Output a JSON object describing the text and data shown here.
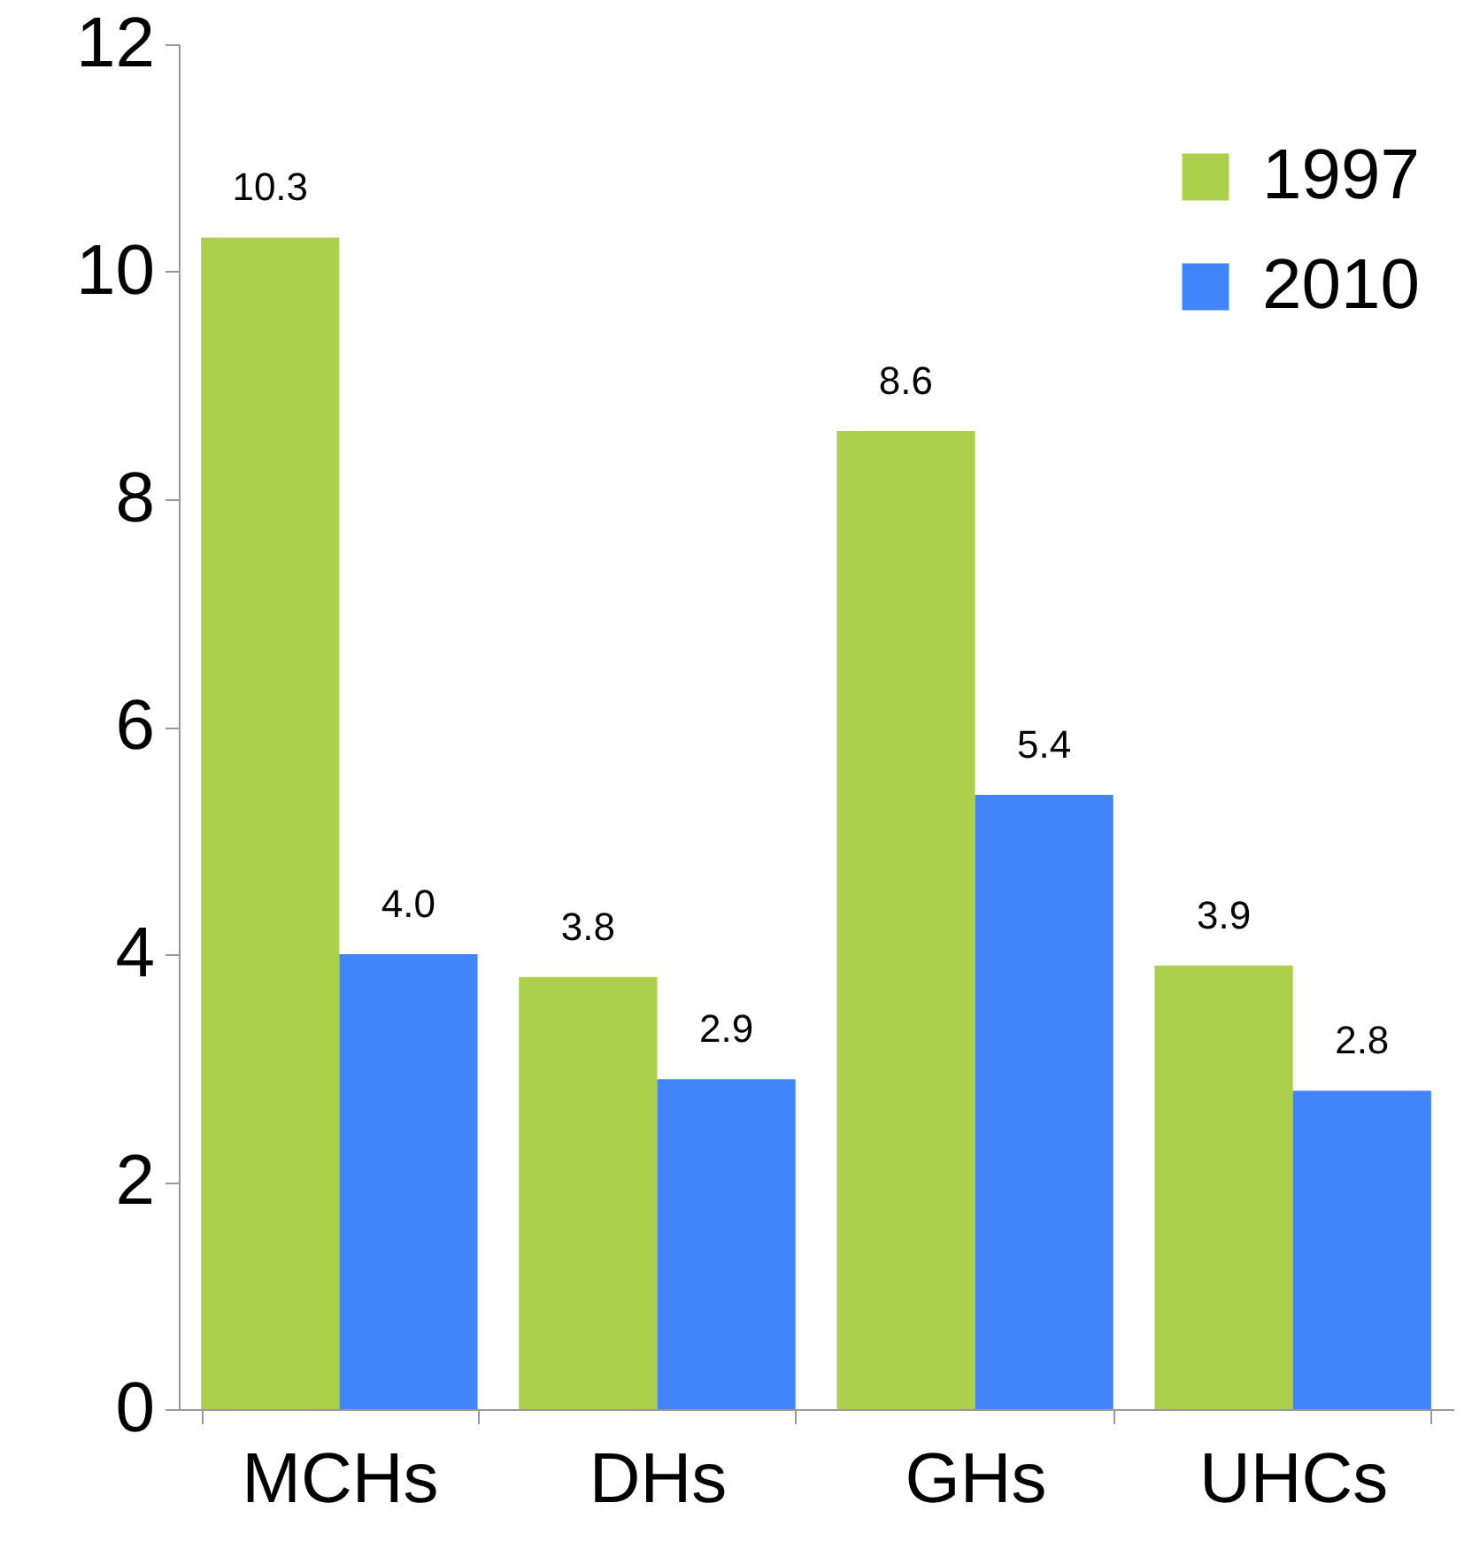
{
  "chart_data": {
    "type": "bar",
    "categories": [
      "MCHs",
      "DHs",
      "GHs",
      "UHCs"
    ],
    "series": [
      {
        "name": "1997",
        "color": "#acd04c",
        "values": [
          10.3,
          3.8,
          8.6,
          3.9
        ],
        "value_labels": [
          "10.3",
          "3.8",
          "8.6",
          "3.9"
        ]
      },
      {
        "name": "2010",
        "color": "#4285fb",
        "values": [
          4.0,
          2.9,
          5.4,
          2.8
        ],
        "value_labels": [
          "4.0",
          "2.9",
          "5.4",
          "2.8"
        ]
      }
    ],
    "ylim": [
      0,
      12
    ],
    "yticks": [
      0,
      2,
      4,
      6,
      8,
      10,
      12
    ],
    "legend": "top right"
  }
}
